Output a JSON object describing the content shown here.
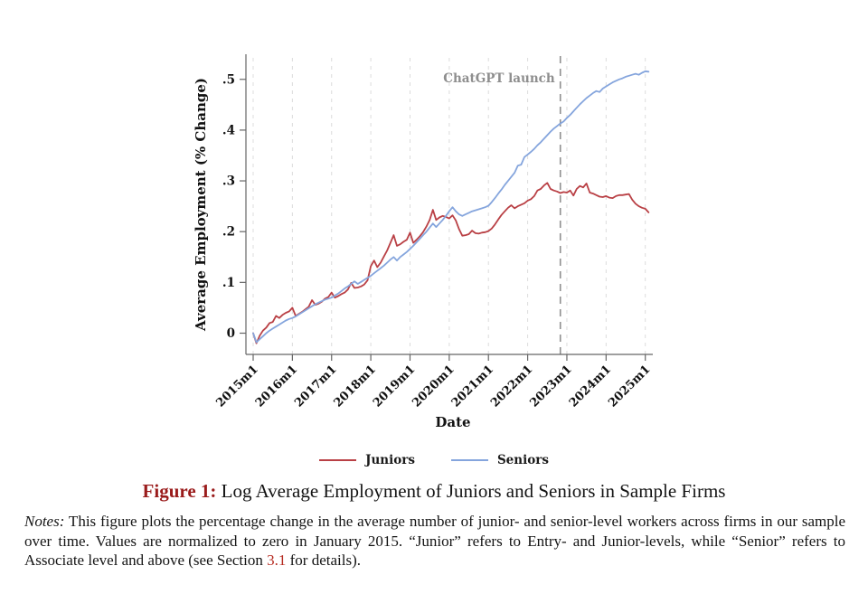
{
  "figure": {
    "caption_label": "Figure 1:",
    "caption_text": " Log Average Employment of Juniors and Seniors in Sample Firms",
    "notes_label": "Notes:",
    "notes_body1": " This figure plots the percentage change in the average number of junior- and senior-level workers across firms in our sample over time. Values are normalized to zero in January 2015. “Junior” refers to Entry- and Junior-levels, while “Senior” refers to Associate level and above (see Section ",
    "notes_link": "3.1",
    "notes_body2": " for details)."
  },
  "chart_data": {
    "type": "line",
    "title": "",
    "xlabel": "Date",
    "ylabel": "Average Employment (% Change)",
    "x_start": "2015m1",
    "x_frequency": "monthly",
    "x_tick_labels": [
      "2015m1",
      "2016m1",
      "2017m1",
      "2018m1",
      "2019m1",
      "2020m1",
      "2021m1",
      "2022m1",
      "2023m1",
      "2024m1",
      "2025m1"
    ],
    "y_tick_labels": [
      "0",
      ".1",
      ".2",
      ".3",
      ".4",
      ".5"
    ],
    "y_tick_values": [
      0,
      0.1,
      0.2,
      0.3,
      0.4,
      0.5
    ],
    "ylim": [
      -0.03,
      0.53
    ],
    "grid": "vertical-dashed",
    "legend_position": "bottom-center",
    "annotation": {
      "text": "ChatGPT launch",
      "x_label": "2022m11",
      "x_month_index": 94,
      "color": "#8e8e8e"
    },
    "series": [
      {
        "name": "Juniors",
        "color": "#b94045",
        "values": [
          0.0,
          -0.02,
          -0.005,
          0.005,
          0.011,
          0.02,
          0.022,
          0.034,
          0.03,
          0.036,
          0.04,
          0.043,
          0.05,
          0.034,
          0.038,
          0.042,
          0.047,
          0.052,
          0.065,
          0.056,
          0.058,
          0.062,
          0.068,
          0.071,
          0.08,
          0.07,
          0.073,
          0.077,
          0.08,
          0.086,
          0.099,
          0.089,
          0.09,
          0.092,
          0.096,
          0.104,
          0.132,
          0.143,
          0.13,
          0.139,
          0.151,
          0.163,
          0.178,
          0.193,
          0.172,
          0.175,
          0.18,
          0.184,
          0.198,
          0.178,
          0.184,
          0.191,
          0.199,
          0.21,
          0.223,
          0.243,
          0.223,
          0.228,
          0.231,
          0.229,
          0.226,
          0.232,
          0.222,
          0.205,
          0.192,
          0.193,
          0.195,
          0.202,
          0.197,
          0.196,
          0.198,
          0.199,
          0.201,
          0.206,
          0.214,
          0.224,
          0.233,
          0.24,
          0.247,
          0.252,
          0.246,
          0.25,
          0.253,
          0.256,
          0.261,
          0.264,
          0.27,
          0.281,
          0.284,
          0.291,
          0.296,
          0.284,
          0.281,
          0.279,
          0.276,
          0.278,
          0.277,
          0.281,
          0.271,
          0.284,
          0.29,
          0.287,
          0.295,
          0.277,
          0.275,
          0.272,
          0.269,
          0.268,
          0.27,
          0.267,
          0.266,
          0.27,
          0.272,
          0.272,
          0.273,
          0.274,
          0.263,
          0.255,
          0.25,
          0.247,
          0.245,
          0.238
        ]
      },
      {
        "name": "Seniors",
        "color": "#85a5dd",
        "values": [
          0.0,
          -0.018,
          -0.012,
          -0.006,
          0.0,
          0.005,
          0.009,
          0.013,
          0.017,
          0.021,
          0.025,
          0.028,
          0.03,
          0.033,
          0.037,
          0.041,
          0.045,
          0.049,
          0.053,
          0.057,
          0.06,
          0.063,
          0.066,
          0.068,
          0.07,
          0.074,
          0.078,
          0.083,
          0.088,
          0.092,
          0.097,
          0.102,
          0.097,
          0.101,
          0.105,
          0.109,
          0.113,
          0.118,
          0.123,
          0.128,
          0.133,
          0.139,
          0.145,
          0.15,
          0.143,
          0.15,
          0.155,
          0.16,
          0.166,
          0.172,
          0.179,
          0.186,
          0.193,
          0.2,
          0.208,
          0.216,
          0.209,
          0.216,
          0.223,
          0.231,
          0.24,
          0.248,
          0.24,
          0.234,
          0.231,
          0.234,
          0.237,
          0.24,
          0.242,
          0.244,
          0.246,
          0.248,
          0.251,
          0.258,
          0.266,
          0.275,
          0.283,
          0.292,
          0.3,
          0.308,
          0.316,
          0.33,
          0.332,
          0.347,
          0.352,
          0.357,
          0.363,
          0.37,
          0.376,
          0.383,
          0.39,
          0.397,
          0.403,
          0.408,
          0.413,
          0.417,
          0.424,
          0.43,
          0.437,
          0.444,
          0.451,
          0.457,
          0.463,
          0.468,
          0.473,
          0.477,
          0.475,
          0.482,
          0.486,
          0.49,
          0.494,
          0.497,
          0.5,
          0.502,
          0.505,
          0.507,
          0.509,
          0.511,
          0.509,
          0.513,
          0.516,
          0.515
        ]
      }
    ],
    "styling": {
      "grid_color": "#dcdcdc",
      "axis_color": "#666666",
      "tick_label_color": "#111111",
      "annotation_line_color": "#8f8f8f"
    }
  }
}
